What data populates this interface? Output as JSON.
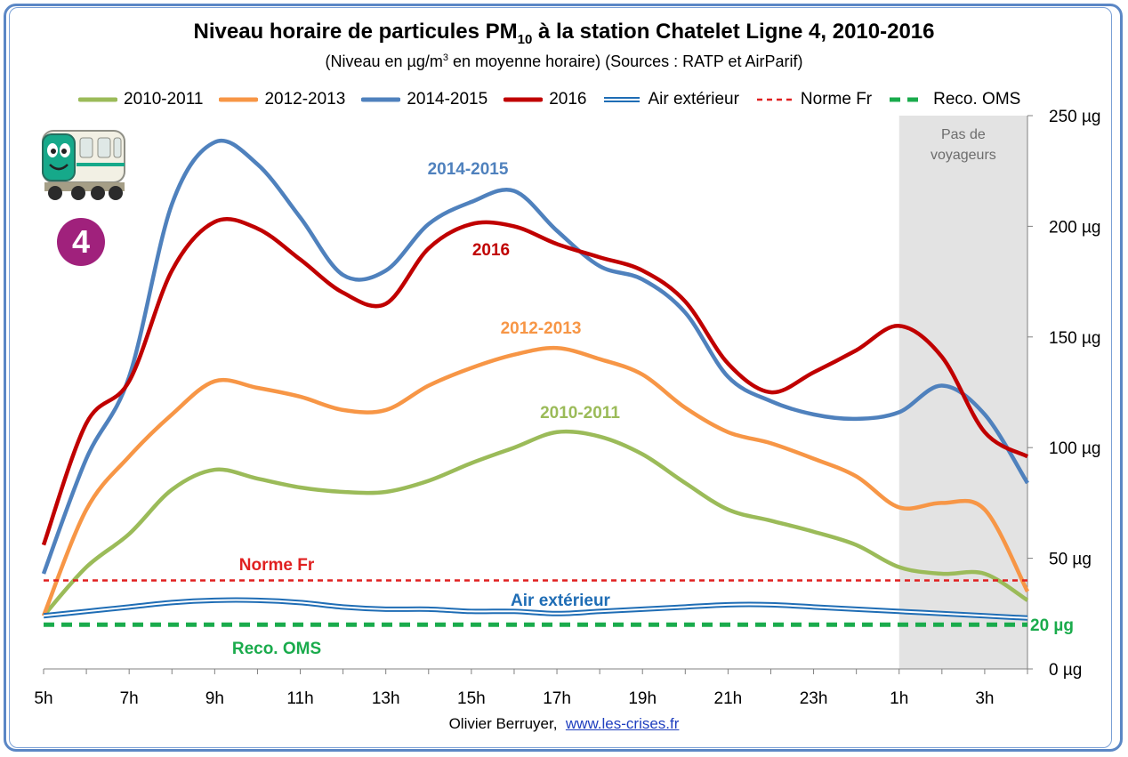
{
  "title": {
    "main": "Niveau horaire de particules PM",
    "sub": "10",
    "rest": " à la station Chatelet Ligne 4, 2010-2016"
  },
  "subtitle": {
    "before": "(Niveau en µg/m",
    "sup": "3",
    "after": " en moyenne horaire) (Sources : RATP et AirParif)"
  },
  "credit": {
    "author": "Olivier Berruyer,",
    "link": "www.les-crises.fr"
  },
  "badge": {
    "line": "4",
    "color": "#a0217c",
    "icon": "metro-train-icon"
  },
  "chart_data": {
    "type": "line",
    "title": "Niveau horaire de particules PM10 à la station Chatelet Ligne 4, 2010-2016",
    "x_tick_labels": [
      "5h",
      "7h",
      "9h",
      "11h",
      "13h",
      "15h",
      "17h",
      "19h",
      "21h",
      "23h",
      "1h",
      "3h"
    ],
    "x_hours": [
      5,
      6,
      7,
      8,
      9,
      10,
      11,
      12,
      13,
      14,
      15,
      16,
      17,
      18,
      19,
      20,
      21,
      22,
      23,
      24,
      25,
      26,
      27,
      28
    ],
    "y_tick_labels": [
      "0 µg",
      "50 µg",
      "100 µg",
      "150 µg",
      "200 µg",
      "250 µg"
    ],
    "ylim": [
      0,
      250
    ],
    "y_axis_position": "right",
    "grid": false,
    "legend_position": "top",
    "shaded_region": {
      "from_hour": 25,
      "to_hour": 28,
      "label_line1": "Pas de",
      "label_line2": "voyageurs",
      "color": "#e3e3e3"
    },
    "series": [
      {
        "name": "2010-2011",
        "color": "#9bbb59",
        "style": "solid",
        "label": "2010-2011",
        "values": [
          24,
          46,
          61,
          81,
          90,
          86,
          82,
          80,
          80,
          85,
          93,
          100,
          107,
          105,
          97,
          84,
          72,
          67,
          62,
          56,
          46,
          43,
          43,
          31
        ]
      },
      {
        "name": "2012-2013",
        "color": "#f79646",
        "style": "solid",
        "label": "2012-2013",
        "values": [
          24,
          72,
          96,
          115,
          130,
          127,
          123,
          117,
          117,
          128,
          136,
          142,
          145,
          140,
          133,
          118,
          107,
          102,
          95,
          87,
          73,
          75,
          72,
          35
        ]
      },
      {
        "name": "2014-2015",
        "color": "#4f81bd",
        "style": "solid",
        "label": "2014-2015",
        "values": [
          43,
          95,
          132,
          210,
          238,
          228,
          204,
          178,
          180,
          201,
          211,
          216,
          198,
          182,
          176,
          161,
          132,
          121,
          115,
          113,
          116,
          128,
          115,
          84
        ]
      },
      {
        "name": "2016",
        "color": "#c00000",
        "style": "solid",
        "label": "2016",
        "values": [
          56,
          111,
          130,
          180,
          202,
          199,
          185,
          170,
          165,
          190,
          201,
          200,
          192,
          186,
          180,
          166,
          138,
          125,
          134,
          144,
          155,
          141,
          107,
          96
        ]
      },
      {
        "name": "Air extérieur",
        "color": "#1f6db5",
        "style": "double",
        "label": "Air extérieur",
        "values": [
          24,
          26,
          28,
          30,
          31,
          31,
          30,
          28,
          27,
          27,
          26,
          26,
          25,
          26,
          27,
          28,
          29,
          29,
          28,
          27,
          26,
          25,
          24,
          23
        ]
      },
      {
        "name": "Norme Fr",
        "color": "#e02020",
        "style": "dashed",
        "label": "Norme Fr",
        "values": [
          40,
          40,
          40,
          40,
          40,
          40,
          40,
          40,
          40,
          40,
          40,
          40,
          40,
          40,
          40,
          40,
          40,
          40,
          40,
          40,
          40,
          40,
          40,
          40
        ]
      },
      {
        "name": "Reco. OMS",
        "color": "#1aab4c",
        "style": "thick-dashed",
        "label": "Reco. OMS",
        "values": [
          20,
          20,
          20,
          20,
          20,
          20,
          20,
          20,
          20,
          20,
          20,
          20,
          20,
          20,
          20,
          20,
          20,
          20,
          20,
          20,
          20,
          20,
          20,
          20
        ]
      }
    ],
    "annotations": [
      {
        "text": "20 µg",
        "color": "#1aab4c",
        "y": 20
      }
    ]
  }
}
